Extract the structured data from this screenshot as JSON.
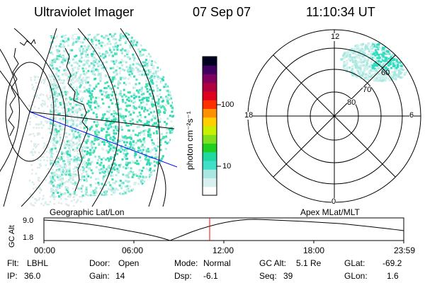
{
  "header": {
    "title": "Ultraviolet Imager",
    "date": "07 Sep 07",
    "time": "11:10:34 UT"
  },
  "colorbar": {
    "label": "photon cm⁻²s⁻¹",
    "ticks": [
      "100",
      "10"
    ],
    "colors": [
      "#ffffff",
      "#d8f0f0",
      "#a8e8e0",
      "#40e0c8",
      "#20d8a0",
      "#20d020",
      "#80e020",
      "#c8f000",
      "#ffd000",
      "#ff9000",
      "#ff3000",
      "#e00020",
      "#b00040",
      "#800060",
      "#400060",
      "#000020"
    ]
  },
  "left_map": {
    "label": "Geographic Lat/Lon"
  },
  "polar_plot": {
    "label": "Apex MLat/MLT",
    "mlt_labels": {
      "top": "12",
      "left": "18",
      "right": "6",
      "bottom": "0"
    },
    "lat_labels": [
      "60",
      "70",
      "80"
    ]
  },
  "altitude_track": {
    "axis_label": "GC Alt",
    "y_ticks": [
      "9.0",
      "1.8"
    ],
    "x_ticks": [
      "00:00",
      "06:00",
      "12:00",
      "18:00",
      "23:59"
    ],
    "current_marker_color": "#ff0000"
  },
  "status": {
    "flt_label": "Flt:",
    "flt_value": "LBHL",
    "ip_label": "IP:",
    "ip_value": "36.0",
    "door_label": "Door:",
    "door_value": "Open",
    "gain_label": "Gain:",
    "gain_value": "14",
    "mode_label": "Mode:",
    "mode_value": "Normal",
    "dsp_label": "Dsp:",
    "dsp_value": "-6.1",
    "gcalt_label": "GC Alt:",
    "gcalt_value": "5.1 Re",
    "seq_label": "Seq:",
    "seq_value": "39",
    "glat_label": "GLat:",
    "glat_value": "-69.2",
    "glon_label": "GLon:",
    "glon_value": "1.6"
  }
}
